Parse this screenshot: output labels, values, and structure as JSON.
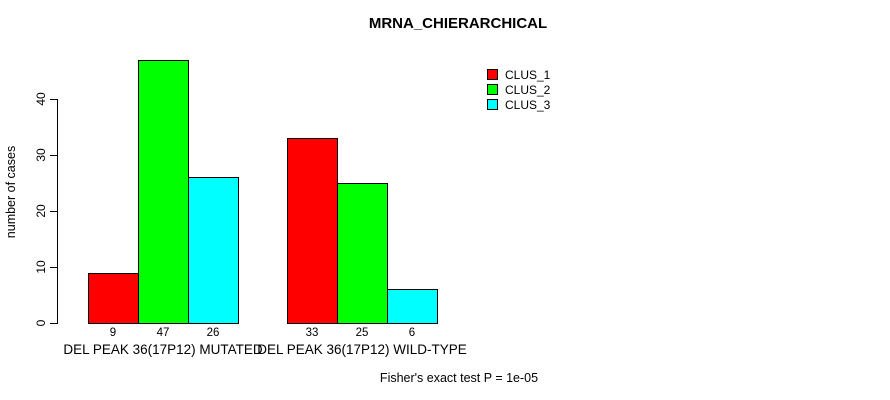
{
  "title": "MRNA_CHIERARCHICAL",
  "chart_data": {
    "type": "bar",
    "groups": [
      "DEL PEAK 36(17P12) MUTATED",
      "DEL PEAK 36(17P12) WILD-TYPE"
    ],
    "series": [
      {
        "name": "CLUS_1",
        "color": "#FF0000",
        "values": [
          9,
          33
        ]
      },
      {
        "name": "CLUS_2",
        "color": "#00FF00",
        "values": [
          47,
          25
        ]
      },
      {
        "name": "CLUS_3",
        "color": "#00FFFF",
        "values": [
          26,
          6
        ]
      }
    ],
    "ylabel": "number of cases",
    "yticks": [
      "0",
      "10",
      "20",
      "30",
      "40"
    ],
    "ytick_values": [
      0,
      10,
      20,
      30,
      40
    ],
    "ylim": [
      0,
      48
    ],
    "grid": false,
    "legend_position": "top-right",
    "bar_value_labels_shown": true
  },
  "footer": {
    "note": "Fisher's exact test P = 1e-05"
  }
}
